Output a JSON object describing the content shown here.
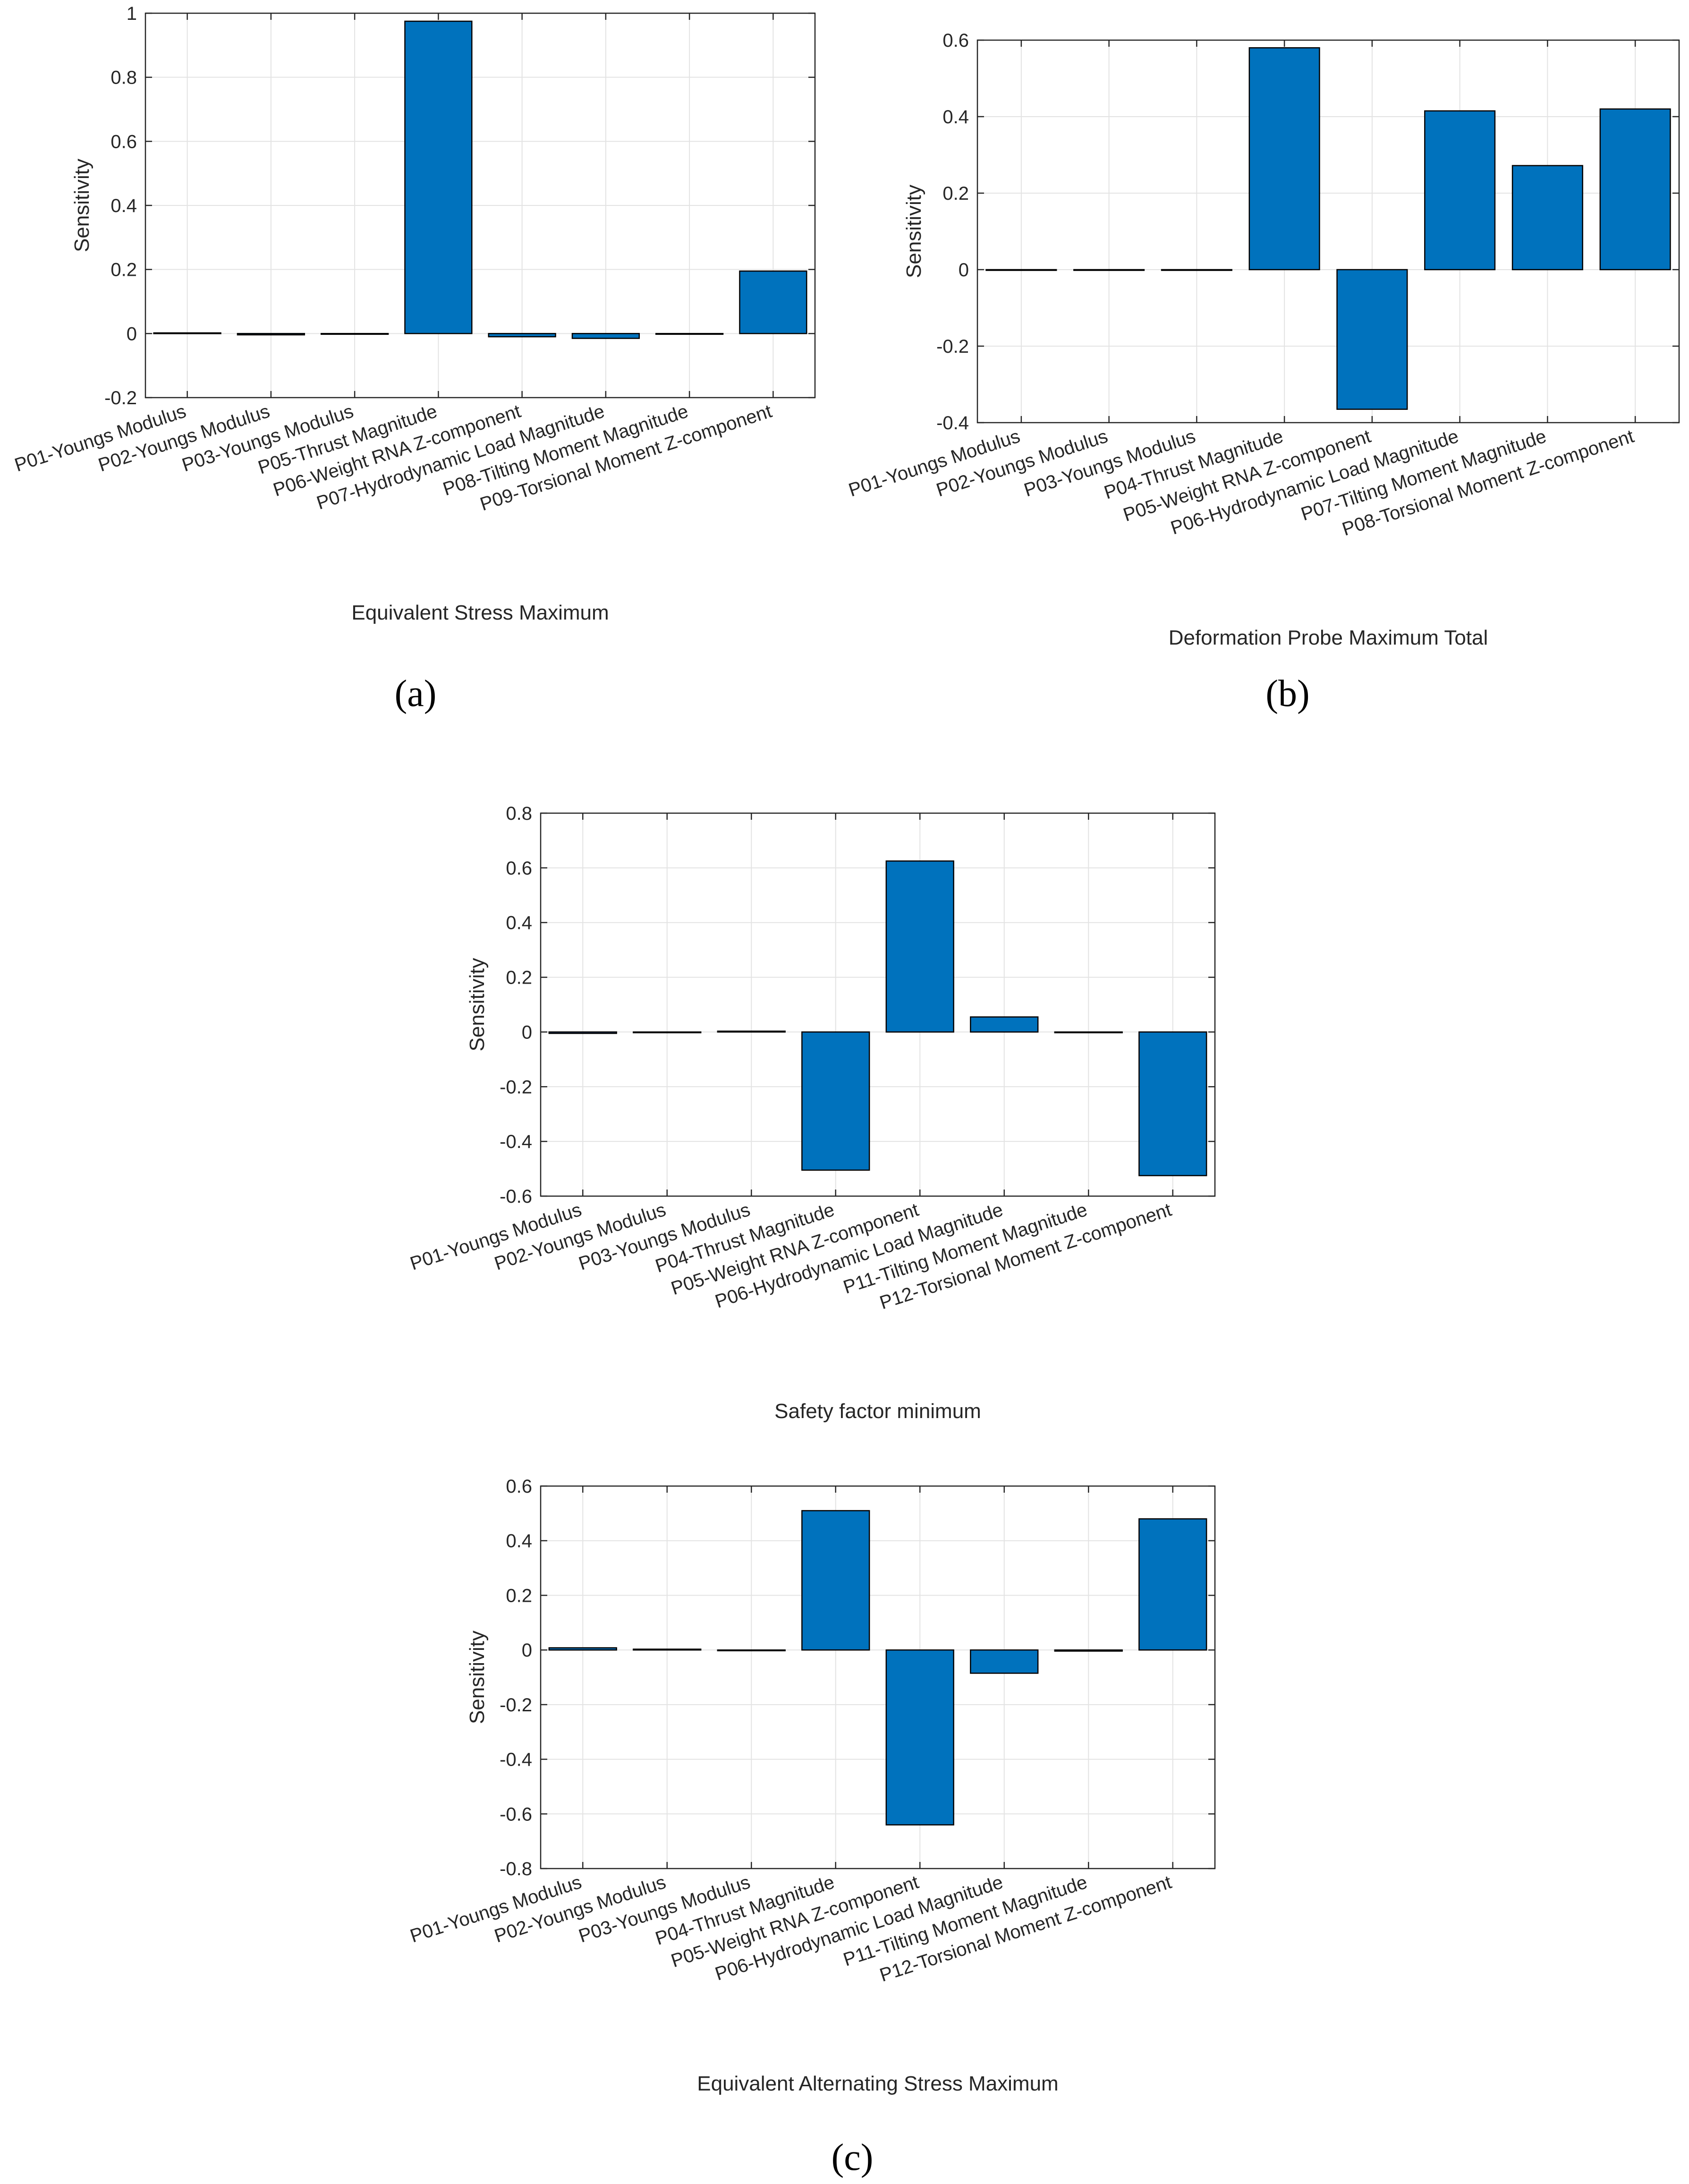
{
  "colors": {
    "bar_fill": "#0072BD",
    "bar_stroke": "#000000",
    "grid": "#e3e3e3",
    "axis": "#262626"
  },
  "panel_labels": {
    "a": "(a)",
    "b": "(b)",
    "c": "(c)"
  },
  "chart_data": [
    {
      "id": "a",
      "type": "bar",
      "title": "",
      "xlabel": "Equivalent Stress Maximum",
      "ylabel": "Sensitivity",
      "ylim": [
        -0.2,
        1
      ],
      "yticks": [
        -0.2,
        0,
        0.2,
        0.4,
        0.6,
        0.8,
        1
      ],
      "ytick_labels": [
        "-0.2",
        "0",
        "0.2",
        "0.4",
        "0.6",
        "0.8",
        "1"
      ],
      "grid": true,
      "categories": [
        "P01-Youngs Modulus",
        "P02-Youngs Modulus",
        "P03-Youngs Modulus",
        "P05-Thrust Magnitude",
        "P06-Weight RNA Z-component",
        "P07-Hydrodynamic Load Magnitude",
        "P08-Tilting Moment Magnitude",
        "P09-Torsional Moment Z-component"
      ],
      "values": [
        0.002,
        -0.004,
        0,
        0.975,
        -0.01,
        -0.015,
        0,
        0.195
      ]
    },
    {
      "id": "b",
      "type": "bar",
      "title": "",
      "xlabel": "Deformation Probe Maximum Total",
      "ylabel": "Sensitivity",
      "ylim": [
        -0.4,
        0.6
      ],
      "yticks": [
        -0.4,
        -0.2,
        0,
        0.2,
        0.4,
        0.6
      ],
      "ytick_labels": [
        "-0.4",
        "-0.2",
        "0",
        "0.2",
        "0.4",
        "0.6"
      ],
      "grid": true,
      "categories": [
        "P01-Youngs Modulus",
        "P02-Youngs Modulus",
        "P03-Youngs Modulus",
        "P04-Thrust Magnitude",
        "P05-Weight RNA Z-component",
        "P06-Hydrodynamic Load Magnitude",
        "P07-Tilting Moment Magnitude",
        "P08-Torsional Moment Z-component"
      ],
      "values": [
        0,
        0,
        0,
        0.58,
        -0.365,
        0.415,
        0.272,
        0.42
      ]
    },
    {
      "id": "c1",
      "type": "bar",
      "title": "",
      "xlabel": "Safety factor minimum",
      "ylabel": "Sensitivity",
      "ylim": [
        -0.6,
        0.8
      ],
      "yticks": [
        -0.6,
        -0.4,
        -0.2,
        0,
        0.2,
        0.4,
        0.6,
        0.8
      ],
      "ytick_labels": [
        "-0.6",
        "-0.4",
        "-0.2",
        "0",
        "0.2",
        "0.4",
        "0.6",
        "0.8"
      ],
      "grid": true,
      "categories": [
        "P01-Youngs Modulus",
        "P02-Youngs Modulus",
        "P03-Youngs Modulus",
        "P04-Thrust Magnitude",
        "P05-Weight RNA Z-component",
        "P06-Hydrodynamic Load Magnitude",
        "P11-Tilting Moment Magnitude",
        "P12-Torsional Moment Z-component"
      ],
      "values": [
        -0.005,
        0,
        0.003,
        -0.505,
        0.625,
        0.055,
        0,
        -0.525
      ]
    },
    {
      "id": "c2",
      "type": "bar",
      "title": "",
      "xlabel": "Equivalent Alternating Stress Maximum",
      "ylabel": "Sensitivity",
      "ylim": [
        -0.8,
        0.6
      ],
      "yticks": [
        -0.8,
        -0.6,
        -0.4,
        -0.2,
        0,
        0.2,
        0.4,
        0.6
      ],
      "ytick_labels": [
        "-0.8",
        "-0.6",
        "-0.4",
        "-0.2",
        "0",
        "0.2",
        "0.4",
        "0.6"
      ],
      "grid": true,
      "categories": [
        "P01-Youngs Modulus",
        "P02-Youngs Modulus",
        "P03-Youngs Modulus",
        "P04-Thrust Magnitude",
        "P05-Weight RNA Z-component",
        "P06-Hydrodynamic Load Magnitude",
        "P11-Tilting Moment Magnitude",
        "P12-Torsional Moment Z-component"
      ],
      "values": [
        0.008,
        0.003,
        0,
        0.51,
        -0.64,
        -0.085,
        -0.004,
        0.48
      ]
    }
  ]
}
